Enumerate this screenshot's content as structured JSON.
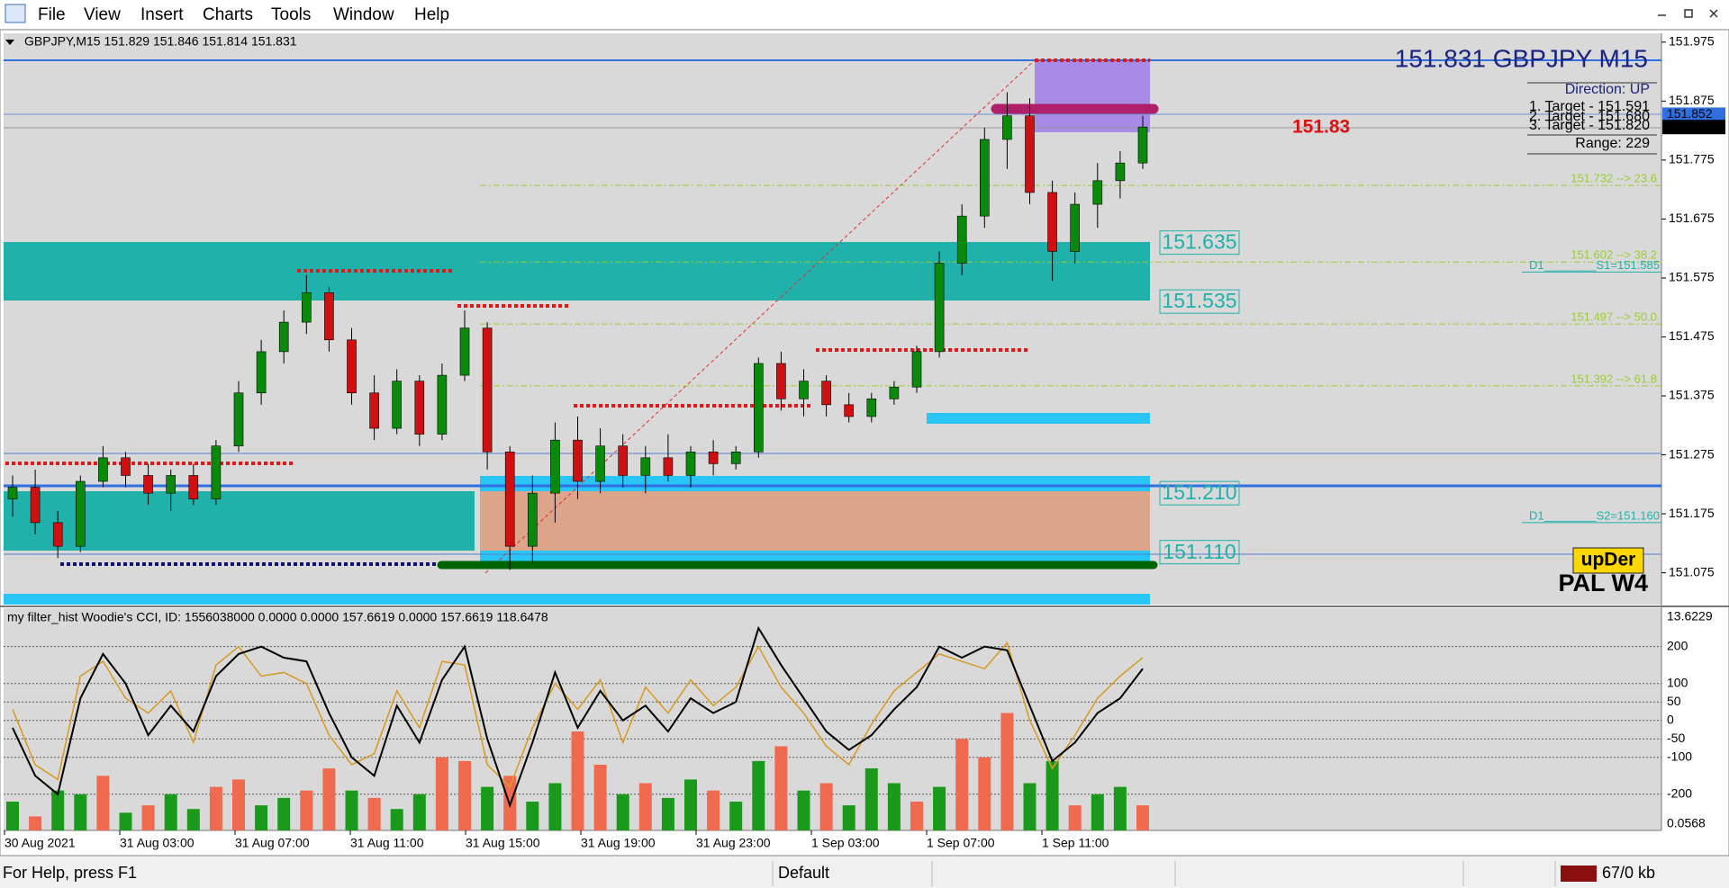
{
  "menu": [
    "File",
    "View",
    "Insert",
    "Charts",
    "Tools",
    "Window",
    "Help"
  ],
  "status": {
    "help": "For Help, press F1",
    "profile": "Default",
    "traffic": "67/0 kb"
  },
  "chart_data": [
    {
      "type": "candlestick",
      "header": "GBPJPY,M15  151.829 151.846 151.814 151.831",
      "title": "151.831 GBPJPY M15",
      "direction": "Direction: UP",
      "targets": [
        "1. Target - 151.591",
        "2. Target - 151.680",
        "3. Target - 151.820"
      ],
      "range": "Range: 229",
      "last_price": 151.83,
      "up_color": "#0a8a0a",
      "down_color": "#d01010",
      "open": [
        151.2,
        151.22,
        151.16,
        151.12,
        151.23,
        151.27,
        151.24,
        151.21,
        151.24,
        151.2,
        151.29,
        151.38,
        151.45,
        151.5,
        151.55,
        151.47,
        151.38,
        151.32,
        151.4,
        151.31,
        151.41,
        151.49,
        151.28,
        151.12,
        151.21,
        151.3,
        151.23,
        151.29,
        151.24,
        151.27,
        151.24,
        151.28,
        151.26,
        151.28,
        151.43,
        151.37,
        151.4,
        151.36,
        151.34,
        151.37,
        151.39,
        151.45,
        151.6,
        151.68,
        151.81,
        151.85,
        151.72,
        151.62,
        151.7,
        151.74,
        151.77
      ],
      "high": [
        151.24,
        151.25,
        151.18,
        151.24,
        151.29,
        151.28,
        151.26,
        151.25,
        151.26,
        151.3,
        151.4,
        151.47,
        151.52,
        151.58,
        151.56,
        151.49,
        151.41,
        151.42,
        151.41,
        151.43,
        151.52,
        151.5,
        151.29,
        151.24,
        151.33,
        151.34,
        151.32,
        151.31,
        151.29,
        151.31,
        151.29,
        151.3,
        151.29,
        151.44,
        151.45,
        151.42,
        151.41,
        151.38,
        151.38,
        151.4,
        151.46,
        151.62,
        151.7,
        151.83,
        151.89,
        151.88,
        151.74,
        151.72,
        151.77,
        151.79,
        151.85
      ],
      "low": [
        151.17,
        151.14,
        151.1,
        151.11,
        151.22,
        151.22,
        151.19,
        151.18,
        151.19,
        151.19,
        151.28,
        151.36,
        151.43,
        151.48,
        151.45,
        151.36,
        151.3,
        151.31,
        151.29,
        151.3,
        151.4,
        151.25,
        151.08,
        151.09,
        151.16,
        151.2,
        151.21,
        151.22,
        151.21,
        151.23,
        151.22,
        151.24,
        151.25,
        151.27,
        151.35,
        151.34,
        151.34,
        151.33,
        151.33,
        151.36,
        151.38,
        151.44,
        151.58,
        151.66,
        151.76,
        151.7,
        151.57,
        151.6,
        151.66,
        151.71,
        151.76
      ],
      "close": [
        151.22,
        151.16,
        151.12,
        151.23,
        151.27,
        151.24,
        151.21,
        151.24,
        151.2,
        151.29,
        151.38,
        151.45,
        151.5,
        151.55,
        151.47,
        151.38,
        151.32,
        151.4,
        151.31,
        151.41,
        151.49,
        151.28,
        151.12,
        151.21,
        151.3,
        151.23,
        151.29,
        151.24,
        151.27,
        151.24,
        151.28,
        151.26,
        151.28,
        151.43,
        151.37,
        151.4,
        151.36,
        151.34,
        151.37,
        151.39,
        151.45,
        151.6,
        151.68,
        151.81,
        151.85,
        151.72,
        151.62,
        151.7,
        151.74,
        151.77,
        151.831
      ],
      "ylim": [
        151.021,
        151.99
      ],
      "yticks": [
        151.975,
        151.875,
        151.775,
        151.675,
        151.575,
        151.475,
        151.375,
        151.275,
        151.175,
        151.075
      ],
      "axis_markers": [
        {
          "value": 151.852,
          "color": "#2f6fdf"
        },
        {
          "value": 151.831,
          "color": "#000000"
        }
      ],
      "levels": [
        {
          "value": 151.635,
          "label": "151.635"
        },
        {
          "value": 151.535,
          "label": "151.535"
        },
        {
          "value": 151.21,
          "label": "151.210"
        },
        {
          "value": 151.11,
          "label": "151.110"
        }
      ],
      "fib_levels": [
        {
          "value": 151.732,
          "label": "151.732 --> 23.6"
        },
        {
          "value": 151.602,
          "label": "151.602 --> 38.2"
        },
        {
          "value": 151.497,
          "label": "151.497 --> 50.0"
        },
        {
          "value": 151.392,
          "label": "151.392 --> 61.8"
        }
      ],
      "pivots": [
        {
          "value": 151.585,
          "label": "D1________S1=151.585"
        },
        {
          "value": 151.16,
          "label": "D1________S2=151.160"
        }
      ],
      "badge": "upDer",
      "badge_sub": "PAL W4",
      "x_labels": [
        "30 Aug 2021",
        "31 Aug 03:00",
        "31 Aug 07:00",
        "31 Aug 11:00",
        "31 Aug 15:00",
        "31 Aug 19:00",
        "31 Aug 23:00",
        "1 Sep 03:00",
        "1 Sep 07:00",
        "1 Sep 11:00"
      ]
    },
    {
      "type": "indicator",
      "header": "my filter_hist  Woodie's CCI, ID: 1556038000 0.0000 0.0000 157.6619 0.0000 157.6619 118.6478",
      "scale_top": "13.6229",
      "scale_bottom": "0.0568",
      "ylim": [
        -298,
        304
      ],
      "yticks": [
        200,
        100,
        50,
        0,
        -50,
        -100,
        -200
      ],
      "cci": {
        "color": "#000000",
        "values": [
          -20,
          -150,
          -200,
          60,
          180,
          100,
          -40,
          40,
          -30,
          120,
          180,
          200,
          170,
          160,
          20,
          -100,
          -150,
          40,
          -60,
          110,
          200,
          -50,
          -230,
          -60,
          130,
          -20,
          80,
          0,
          40,
          -30,
          60,
          20,
          50,
          250,
          150,
          60,
          -30,
          -80,
          -40,
          30,
          90,
          200,
          170,
          200,
          190,
          40,
          -110,
          -60,
          20,
          60,
          140
        ]
      },
      "turbo": {
        "color": "#d89a20",
        "values": [
          30,
          -120,
          -160,
          120,
          160,
          60,
          20,
          80,
          -60,
          150,
          200,
          120,
          130,
          100,
          -40,
          -120,
          -90,
          80,
          -20,
          160,
          150,
          -120,
          -180,
          -20,
          100,
          30,
          110,
          -60,
          90,
          20,
          110,
          40,
          90,
          200,
          90,
          20,
          -70,
          -120,
          -10,
          80,
          130,
          180,
          160,
          140,
          210,
          0,
          -130,
          -40,
          60,
          120,
          170
        ]
      },
      "hist": {
        "values": [
          -220,
          -260,
          -190,
          -200,
          -150,
          -250,
          -230,
          -200,
          -240,
          -180,
          -160,
          -230,
          -210,
          -190,
          -130,
          -190,
          -210,
          -240,
          -200,
          -100,
          -110,
          -180,
          -150,
          -220,
          -170,
          -30,
          -120,
          -200,
          -170,
          -210,
          -160,
          -190,
          -220,
          -110,
          -70,
          -190,
          -170,
          -230,
          -130,
          -170,
          -220,
          -180,
          -50,
          -100,
          20,
          -170,
          -110,
          -230,
          -200,
          -180,
          -230
        ],
        "colors": [
          "#1a9a1a",
          "#f06a50",
          "#1a9a1a",
          "#1a9a1a",
          "#f06a50",
          "#1a9a1a",
          "#f06a50",
          "#1a9a1a",
          "#1a9a1a",
          "#f06a50",
          "#f06a50",
          "#1a9a1a",
          "#1a9a1a",
          "#f06a50",
          "#f06a50",
          "#1a9a1a",
          "#f06a50",
          "#1a9a1a",
          "#1a9a1a",
          "#f06a50",
          "#f06a50",
          "#1a9a1a",
          "#f06a50",
          "#1a9a1a",
          "#1a9a1a",
          "#f06a50",
          "#f06a50",
          "#1a9a1a",
          "#f06a50",
          "#1a9a1a",
          "#1a9a1a",
          "#f06a50",
          "#1a9a1a",
          "#1a9a1a",
          "#f06a50",
          "#1a9a1a",
          "#f06a50",
          "#1a9a1a",
          "#1a9a1a",
          "#1a9a1a",
          "#f06a50",
          "#1a9a1a",
          "#f06a50",
          "#f06a50",
          "#f06a50",
          "#1a9a1a",
          "#1a9a1a",
          "#f06a50",
          "#1a9a1a",
          "#1a9a1a",
          "#f06a50"
        ]
      }
    }
  ]
}
